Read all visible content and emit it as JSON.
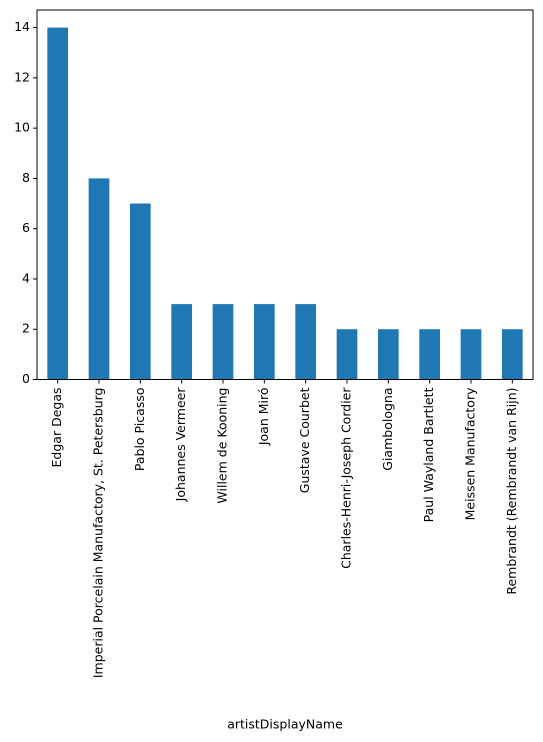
{
  "chart_data": {
    "type": "bar",
    "categories": [
      "Edgar Degas",
      "Imperial Porcelain Manufactory, St. Petersburg",
      "Pablo Picasso",
      "Johannes Vermeer",
      "Willem de Kooning",
      "Joan Miró",
      "Gustave Courbet",
      "Charles-Henri-Joseph Cordier",
      "Giambologna",
      "Paul Wayland Bartlett",
      "Meissen Manufactory",
      "Rembrandt (Rembrandt van Rijn)"
    ],
    "values": [
      14,
      8,
      7,
      3,
      3,
      3,
      3,
      2,
      2,
      2,
      2,
      2
    ],
    "color": "#1f77b4",
    "x_label": "artistDisplayName",
    "ylim": [
      0,
      14.7
    ],
    "yticks": [
      0,
      2,
      4,
      6,
      8,
      10,
      12,
      14
    ],
    "grid": false
  }
}
